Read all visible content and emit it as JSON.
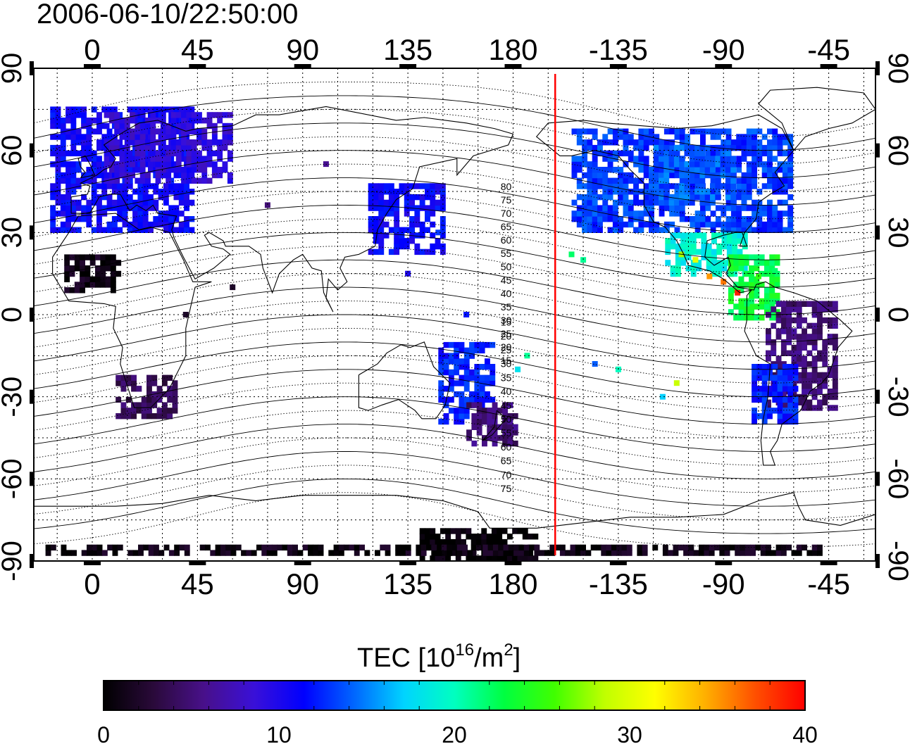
{
  "timestamp": "2006-06-10/22:50:00",
  "lon_ticks": [
    {
      "lon": 0,
      "label": "0"
    },
    {
      "lon": 45,
      "label": "45"
    },
    {
      "lon": 90,
      "label": "90"
    },
    {
      "lon": 135,
      "label": "135"
    },
    {
      "lon": 180,
      "label": "180"
    },
    {
      "lon": 225,
      "label": "-135"
    },
    {
      "lon": 270,
      "label": "-90"
    },
    {
      "lon": 315,
      "label": "-45"
    }
  ],
  "lat_ticks": [
    {
      "lat": 90,
      "label": "90"
    },
    {
      "lat": 60,
      "label": "60"
    },
    {
      "lat": 30,
      "label": "30"
    },
    {
      "lat": 0,
      "label": "0"
    },
    {
      "lat": -30,
      "label": "-30"
    },
    {
      "lat": -60,
      "label": "-60"
    },
    {
      "lat": -90,
      "label": "-90"
    }
  ],
  "map_extent": {
    "lon_min": -25,
    "lon_max": 335,
    "lat_min": -90,
    "lat_max": 90
  },
  "terminator_lon": 198,
  "terminator_color": "#ff0000",
  "magnetic_labels_north": [
    "80",
    "75",
    "70",
    "65",
    "60",
    "55",
    "50",
    "45",
    "40",
    "35",
    "30",
    "25",
    "20",
    "15"
  ],
  "magnetic_labels_south": [
    "15",
    "20",
    "25",
    "30",
    "35",
    "40",
    "45",
    "50",
    "55",
    "60",
    "65",
    "70",
    "75"
  ],
  "colorbar": {
    "title_main": "TEC  [10",
    "title_sup1": "16",
    "title_mid": "/m",
    "title_sup2": "2",
    "title_end": "]",
    "min": 0,
    "max": 40,
    "ticks": [
      {
        "value": 0,
        "label": "0"
      },
      {
        "value": 10,
        "label": "10"
      },
      {
        "value": 20,
        "label": "20"
      },
      {
        "value": 30,
        "label": "30"
      },
      {
        "value": 40,
        "label": "40"
      }
    ],
    "stops": [
      "#000000",
      "#2a0a3a",
      "#48108a",
      "#3a10d8",
      "#0000ff",
      "#0066ff",
      "#00d4ff",
      "#00ffc0",
      "#00ff40",
      "#40ff00",
      "#c0ff00",
      "#ffff00",
      "#ffb000",
      "#ff5000",
      "#ff0000"
    ]
  },
  "chart_data": {
    "type": "heatmap",
    "quantity": "TEC",
    "value_range": [
      0,
      40
    ],
    "regions": [
      {
        "lon": [
          -18,
          42
        ],
        "lat": [
          30,
          75
        ],
        "tec": 11
      },
      {
        "lon": [
          5,
          60
        ],
        "lat": [
          48,
          74
        ],
        "tec": 9
      },
      {
        "lon": [
          -12,
          12
        ],
        "lat": [
          8,
          22
        ],
        "tec": 1
      },
      {
        "lon": [
          10,
          35
        ],
        "lat": [
          -38,
          -22
        ],
        "tec": 4
      },
      {
        "lon": [
          118,
          150
        ],
        "lat": [
          22,
          48
        ],
        "tec": 11
      },
      {
        "lon": [
          148,
          172
        ],
        "lat": [
          -40,
          -10
        ],
        "tec": 12
      },
      {
        "lon": [
          160,
          180
        ],
        "lat": [
          -48,
          -32
        ],
        "tec": 5
      },
      {
        "lon": [
          205,
          298
        ],
        "lat": [
          30,
          68
        ],
        "tec": 13
      },
      {
        "lon": [
          240,
          275
        ],
        "lat": [
          40,
          62
        ],
        "tec": 14
      },
      {
        "lon": [
          245,
          278
        ],
        "lat": [
          14,
          30
        ],
        "tec": 19
      },
      {
        "lon": [
          272,
          292
        ],
        "lat": [
          -2,
          22
        ],
        "tec": 23
      },
      {
        "lon": [
          288,
          318
        ],
        "lat": [
          -35,
          5
        ],
        "tec": 5
      },
      {
        "lon": [
          282,
          300
        ],
        "lat": [
          -40,
          -18
        ],
        "tec": 12
      },
      {
        "lon": [
          140,
          190
        ],
        "lat": [
          -90,
          -78
        ],
        "tec": 0
      },
      {
        "lon": [
          -20,
          310
        ],
        "lat": [
          -88,
          -84
        ],
        "tec": 1
      }
    ],
    "cells": [
      {
        "lon": 264,
        "lat": 14,
        "tec": 35
      },
      {
        "lon": 270,
        "lat": 12,
        "tec": 36
      },
      {
        "lon": 276,
        "lat": 8,
        "tec": 39
      },
      {
        "lon": 258,
        "lat": 20,
        "tec": 30
      },
      {
        "lon": 252,
        "lat": 22,
        "tec": 28
      },
      {
        "lon": 285,
        "lat": 14,
        "tec": 25
      },
      {
        "lon": 292,
        "lat": 16,
        "tec": 22
      },
      {
        "lon": 280,
        "lat": 4,
        "tec": 22
      },
      {
        "lon": 205,
        "lat": 22,
        "tec": 22
      },
      {
        "lon": 210,
        "lat": 20,
        "tec": 21
      },
      {
        "lon": 186,
        "lat": -15,
        "tec": 21
      },
      {
        "lon": 182,
        "lat": -20,
        "tec": 18
      },
      {
        "lon": 250,
        "lat": -25,
        "tec": 29
      },
      {
        "lon": 244,
        "lat": -30,
        "tec": 17
      },
      {
        "lon": 225,
        "lat": -20,
        "tec": 20
      },
      {
        "lon": 215,
        "lat": -18,
        "tec": 14
      },
      {
        "lon": 160,
        "lat": 0,
        "tec": 12
      },
      {
        "lon": 135,
        "lat": 15,
        "tec": 10
      },
      {
        "lon": 148,
        "lat": 30,
        "tec": 13
      },
      {
        "lon": 75,
        "lat": 40,
        "tec": 5
      },
      {
        "lon": 100,
        "lat": 55,
        "tec": 6
      },
      {
        "lon": 60,
        "lat": 10,
        "tec": 2
      },
      {
        "lon": 40,
        "lat": 0,
        "tec": 2
      }
    ]
  }
}
